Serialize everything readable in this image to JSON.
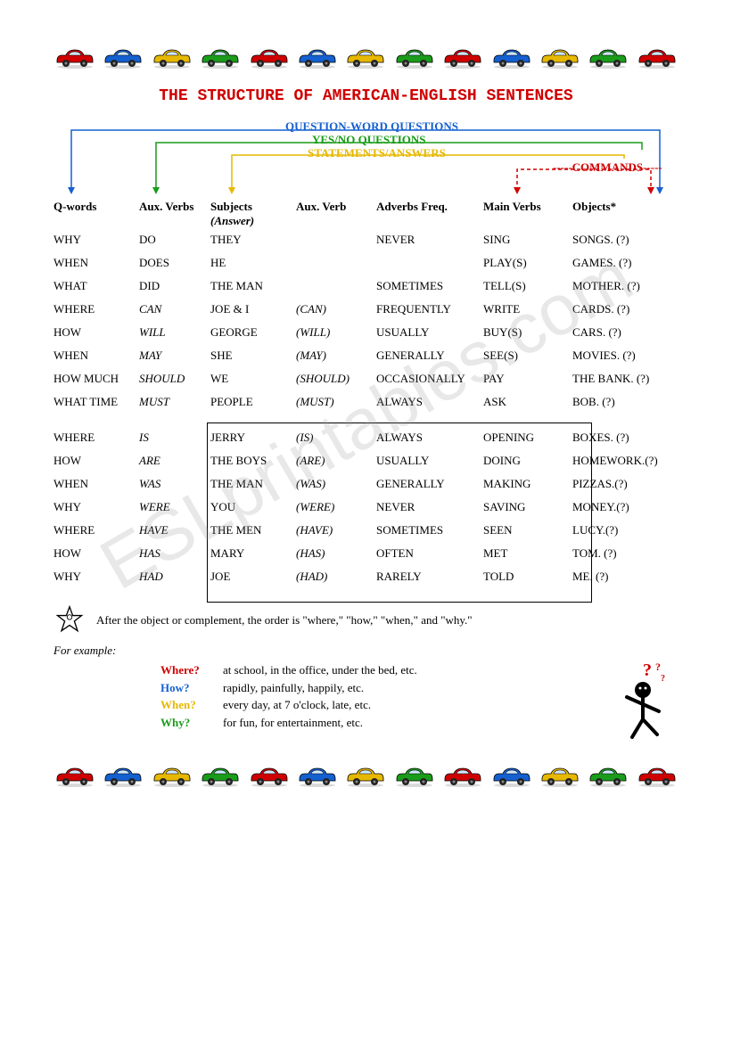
{
  "title": "THE STRUCTURE OF AMERICAN-ENGLISH SENTENCES",
  "car_colors": [
    "#d00000",
    "#1560d0",
    "#e6b800",
    "#1a9c1a",
    "#d00000",
    "#1560d0",
    "#e6b800",
    "#1a9c1a",
    "#d00000",
    "#1560d0",
    "#e6b800",
    "#1a9c1a",
    "#d00000"
  ],
  "diagram": {
    "q_word": {
      "text": "QUESTION-WORD QUESTIONS",
      "color": "#1560d0"
    },
    "yesno": {
      "text": "YES/NO QUESTIONS",
      "color": "#1a9c1a"
    },
    "statements": {
      "text": "STATEMENTS/ANSWERS",
      "color": "#e6b800"
    },
    "commands": {
      "text": "COMMANDS",
      "color": "#d00000"
    }
  },
  "headers": {
    "c1": "Q-words",
    "c2": "Aux. Verbs",
    "c3_a": "Subjects",
    "c3_b": "(Answer)",
    "c4": "Aux. Verb",
    "c5": "Adverbs Freq.",
    "c6": "Main Verbs",
    "c7": "Objects*"
  },
  "group1": [
    {
      "c1": "WHY",
      "c2": "DO",
      "c3": "THEY",
      "c4": "",
      "c5": "NEVER",
      "c6": "SING",
      "c7": "SONGS. (?)",
      "c2i": false
    },
    {
      "c1": "WHEN",
      "c2": "DOES",
      "c3": "HE",
      "c4": "",
      "c5": "",
      "c6": "PLAY(S)",
      "c7": "GAMES. (?)",
      "c2i": false
    },
    {
      "c1": "WHAT",
      "c2": "DID",
      "c3": "THE MAN",
      "c4": "",
      "c5": "SOMETIMES",
      "c6": "TELL(S)",
      "c7": "MOTHER. (?)",
      "c2i": false
    },
    {
      "c1": "WHERE",
      "c2": "CAN",
      "c3": "JOE & I",
      "c4": "(CAN)",
      "c5": "FREQUENTLY",
      "c6": "WRITE",
      "c7": "CARDS. (?)",
      "c2i": true
    },
    {
      "c1": "HOW",
      "c2": "WILL",
      "c3": "GEORGE",
      "c4": "(WILL)",
      "c5": "USUALLY",
      "c6": "BUY(S)",
      "c7": "CARS. (?)",
      "c2i": true
    },
    {
      "c1": "WHEN",
      "c2": "MAY",
      "c3": "SHE",
      "c4": "(MAY)",
      "c5": "GENERALLY",
      "c6": "SEE(S)",
      "c7": "MOVIES. (?)",
      "c2i": true
    },
    {
      "c1": "HOW MUCH",
      "c2": "SHOULD",
      "c3": "WE",
      "c4": "(SHOULD)",
      "c5": "OCCASIONALLY",
      "c6": "PAY",
      "c7": "THE BANK. (?)",
      "c2i": true
    },
    {
      "c1": "WHAT TIME",
      "c2": "MUST",
      "c3": "PEOPLE",
      "c4": "(MUST)",
      "c5": "ALWAYS",
      "c6": "ASK",
      "c7": "BOB. (?)",
      "c2i": true
    }
  ],
  "group2": [
    {
      "c1": "WHERE",
      "c2": "IS",
      "c3": "JERRY",
      "c4": "(IS)",
      "c5": "ALWAYS",
      "c6": "OPENING",
      "c7": "BOXES. (?)"
    },
    {
      "c1": "HOW",
      "c2": "ARE",
      "c3": "THE BOYS",
      "c4": "(ARE)",
      "c5": "USUALLY",
      "c6": "DOING",
      "c7": "HOMEWORK.(?)"
    },
    {
      "c1": "WHEN",
      "c2": "WAS",
      "c3": "THE MAN",
      "c4": "(WAS)",
      "c5": "GENERALLY",
      "c6": "MAKING",
      "c7": "PIZZAS.(?)"
    },
    {
      "c1": "WHY",
      "c2": "WERE",
      "c3": "YOU",
      "c4": "(WERE)",
      "c5": "NEVER",
      "c6": "SAVING",
      "c7": "MONEY.(?)"
    },
    {
      "c1": "WHERE",
      "c2": "HAVE",
      "c3": "THE MEN",
      "c4": "(HAVE)",
      "c5": "SOMETIMES",
      "c6": "SEEN",
      "c7": "LUCY.(?)"
    },
    {
      "c1": "HOW",
      "c2": "HAS",
      "c3": "MARY",
      "c4": "(HAS)",
      "c5": "OFTEN",
      "c6": "MET",
      "c7": "TOM. (?)"
    },
    {
      "c1": "WHY",
      "c2": "HAD",
      "c3": "JOE",
      "c4": "(HAD)",
      "c5": "RARELY",
      "c6": "TOLD",
      "c7": "ME.  (?)"
    }
  ],
  "note": "After the object or complement, the order is \"where,\" \"how,\" \"when,\" and \"why.\"",
  "example_label": "For example:",
  "examples": [
    {
      "q": "Where?",
      "color": "#d00000",
      "a": "at school, in the office, under the bed, etc."
    },
    {
      "q": "How?",
      "color": "#1560d0",
      "a": "rapidly, painfully, happily, etc."
    },
    {
      "q": "When?",
      "color": "#e6b800",
      "a": "every day, at 7 o'clock, late, etc."
    },
    {
      "q": "Why?",
      "color": "#1a9c1a",
      "a": "for fun, for entertainment, etc."
    }
  ],
  "watermark": "ESLprintables.com"
}
